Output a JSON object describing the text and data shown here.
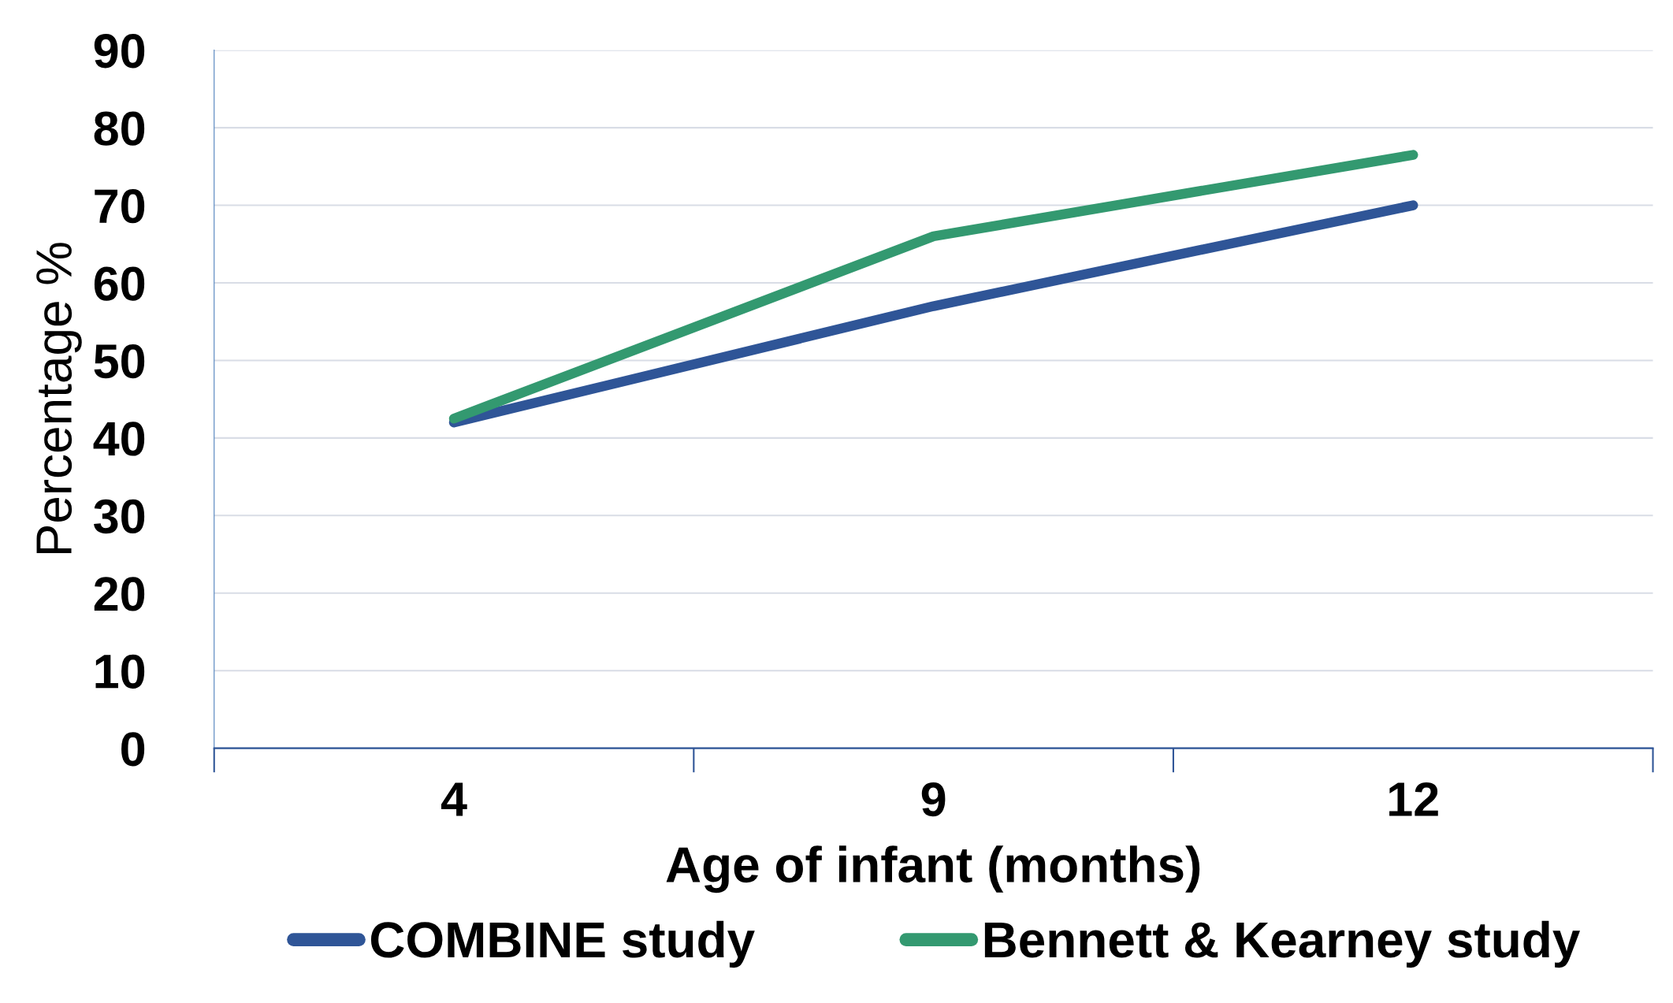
{
  "chart_data": {
    "type": "line",
    "xlabel": "Age of infant (months)",
    "ylabel": "Percentage %",
    "categories": [
      "4",
      "9",
      "12"
    ],
    "series": [
      {
        "name": "COMBINE study",
        "color": "#2f5597",
        "values": [
          42,
          57,
          70
        ]
      },
      {
        "name": "Bennett & Kearney study",
        "color": "#339970",
        "values": [
          42.5,
          66,
          76.5
        ]
      }
    ],
    "ylim": [
      0,
      90
    ],
    "yticks": [
      0,
      10,
      20,
      30,
      40,
      50,
      60,
      70,
      80,
      90
    ],
    "grid": "y",
    "legend": "bottom",
    "line_style": "solid"
  }
}
